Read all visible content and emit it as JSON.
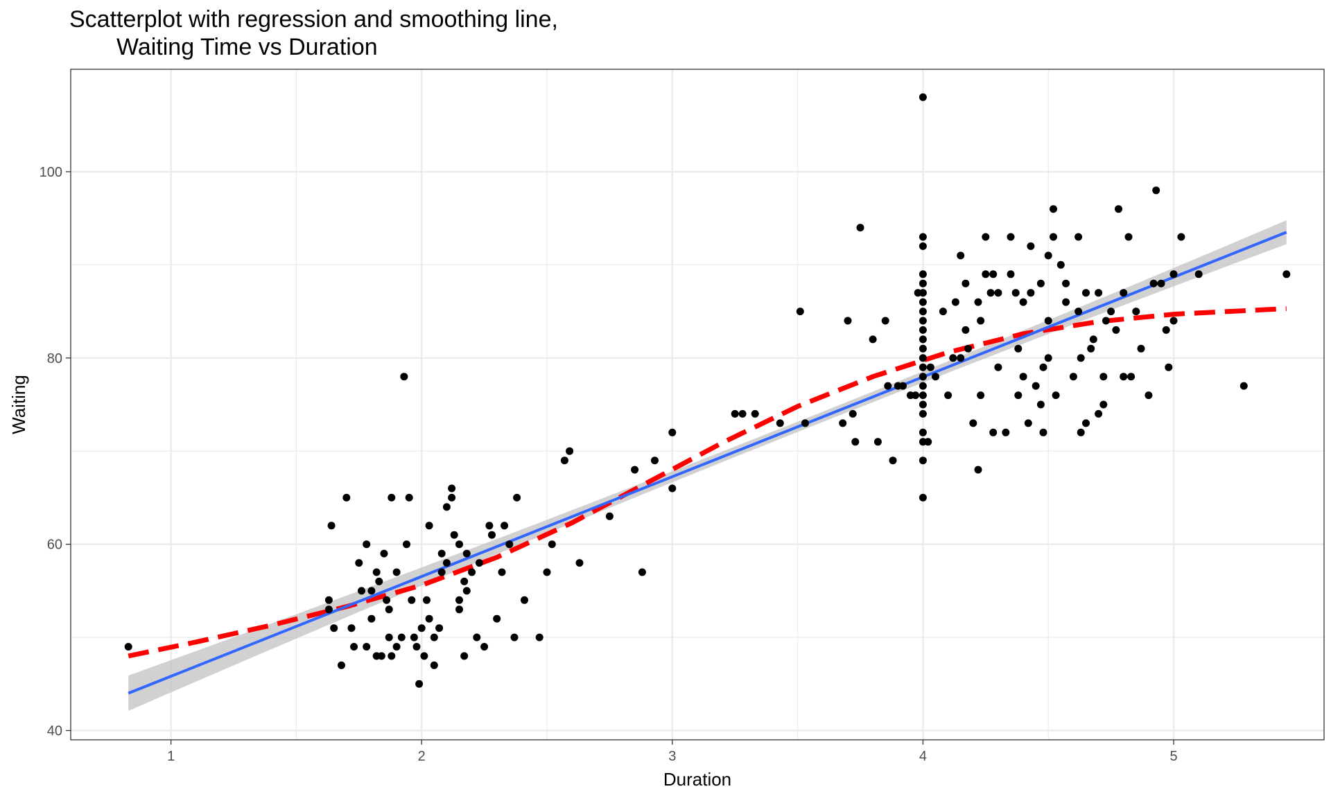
{
  "chart_data": {
    "type": "scatter",
    "title_line1": "Scatterplot with regression and smoothing line,",
    "title_line2": "Waiting Time vs Duration",
    "xlabel": "Duration",
    "ylabel": "Waiting",
    "xlim": [
      0.6,
      5.6
    ],
    "ylim": [
      39,
      111
    ],
    "x_ticks": [
      1,
      2,
      3,
      4,
      5
    ],
    "y_ticks": [
      40,
      60,
      80,
      100
    ],
    "grid": true,
    "legend": "none",
    "colors": {
      "points": "#000000",
      "regression": "#3366FF",
      "ribbon": "#BEBEBE",
      "smooth": "#FF0000",
      "grid": "#EBEBEB",
      "panel_border": "#333333"
    },
    "points": [
      [
        0.83,
        49
      ],
      [
        1.63,
        54
      ],
      [
        1.63,
        53
      ],
      [
        1.64,
        62
      ],
      [
        1.65,
        51
      ],
      [
        1.68,
        47
      ],
      [
        1.7,
        65
      ],
      [
        1.72,
        51
      ],
      [
        1.73,
        49
      ],
      [
        1.75,
        58
      ],
      [
        1.76,
        55
      ],
      [
        1.78,
        60
      ],
      [
        1.78,
        49
      ],
      [
        1.8,
        52
      ],
      [
        1.8,
        55
      ],
      [
        1.82,
        57
      ],
      [
        1.82,
        48
      ],
      [
        1.83,
        56
      ],
      [
        1.84,
        48
      ],
      [
        1.85,
        59
      ],
      [
        1.86,
        54
      ],
      [
        1.87,
        53
      ],
      [
        1.87,
        50
      ],
      [
        1.88,
        65
      ],
      [
        1.88,
        48
      ],
      [
        1.9,
        49
      ],
      [
        1.9,
        57
      ],
      [
        1.92,
        50
      ],
      [
        1.93,
        78
      ],
      [
        1.94,
        60
      ],
      [
        1.95,
        65
      ],
      [
        1.96,
        54
      ],
      [
        1.97,
        50
      ],
      [
        1.98,
        49
      ],
      [
        1.99,
        45
      ],
      [
        2.0,
        51
      ],
      [
        2.01,
        48
      ],
      [
        2.02,
        54
      ],
      [
        2.03,
        62
      ],
      [
        2.03,
        52
      ],
      [
        2.05,
        50
      ],
      [
        2.05,
        47
      ],
      [
        2.07,
        51
      ],
      [
        2.08,
        57
      ],
      [
        2.08,
        59
      ],
      [
        2.1,
        64
      ],
      [
        2.1,
        58
      ],
      [
        2.12,
        66
      ],
      [
        2.12,
        65
      ],
      [
        2.13,
        61
      ],
      [
        2.15,
        60
      ],
      [
        2.15,
        54
      ],
      [
        2.15,
        53
      ],
      [
        2.17,
        48
      ],
      [
        2.17,
        56
      ],
      [
        2.18,
        59
      ],
      [
        2.18,
        55
      ],
      [
        2.2,
        57
      ],
      [
        2.22,
        50
      ],
      [
        2.23,
        58
      ],
      [
        2.25,
        49
      ],
      [
        2.27,
        62
      ],
      [
        2.28,
        61
      ],
      [
        2.3,
        52
      ],
      [
        2.32,
        57
      ],
      [
        2.33,
        62
      ],
      [
        2.35,
        60
      ],
      [
        2.37,
        50
      ],
      [
        2.38,
        65
      ],
      [
        2.41,
        54
      ],
      [
        2.47,
        50
      ],
      [
        2.5,
        57
      ],
      [
        2.52,
        60
      ],
      [
        2.57,
        69
      ],
      [
        2.59,
        70
      ],
      [
        2.63,
        58
      ],
      [
        2.75,
        63
      ],
      [
        2.85,
        68
      ],
      [
        2.88,
        57
      ],
      [
        2.93,
        69
      ],
      [
        3.0,
        72
      ],
      [
        3.0,
        66
      ],
      [
        3.25,
        74
      ],
      [
        3.28,
        74
      ],
      [
        3.33,
        74
      ],
      [
        3.43,
        73
      ],
      [
        3.53,
        73
      ],
      [
        3.51,
        85
      ],
      [
        3.68,
        73
      ],
      [
        3.7,
        84
      ],
      [
        3.72,
        74
      ],
      [
        3.73,
        71
      ],
      [
        3.75,
        94
      ],
      [
        3.8,
        82
      ],
      [
        3.82,
        71
      ],
      [
        3.85,
        84
      ],
      [
        3.86,
        77
      ],
      [
        3.88,
        69
      ],
      [
        3.9,
        77
      ],
      [
        3.92,
        77
      ],
      [
        3.95,
        76
      ],
      [
        3.97,
        76
      ],
      [
        3.98,
        87
      ],
      [
        4.0,
        108
      ],
      [
        4.0,
        93
      ],
      [
        4.0,
        92
      ],
      [
        4.0,
        89
      ],
      [
        4.0,
        88
      ],
      [
        4.0,
        87
      ],
      [
        4.0,
        86
      ],
      [
        4.0,
        85
      ],
      [
        4.0,
        84
      ],
      [
        4.0,
        83
      ],
      [
        4.0,
        82
      ],
      [
        4.0,
        81
      ],
      [
        4.0,
        80
      ],
      [
        4.0,
        79
      ],
      [
        4.0,
        78
      ],
      [
        4.0,
        77
      ],
      [
        4.0,
        76
      ],
      [
        4.0,
        75
      ],
      [
        4.0,
        74
      ],
      [
        4.0,
        72
      ],
      [
        4.0,
        71
      ],
      [
        4.0,
        69
      ],
      [
        4.0,
        65
      ],
      [
        4.02,
        71
      ],
      [
        4.03,
        79
      ],
      [
        4.05,
        78
      ],
      [
        4.08,
        85
      ],
      [
        4.1,
        76
      ],
      [
        4.12,
        80
      ],
      [
        4.13,
        86
      ],
      [
        4.15,
        91
      ],
      [
        4.15,
        80
      ],
      [
        4.17,
        88
      ],
      [
        4.17,
        83
      ],
      [
        4.18,
        81
      ],
      [
        4.2,
        73
      ],
      [
        4.22,
        68
      ],
      [
        4.22,
        86
      ],
      [
        4.23,
        84
      ],
      [
        4.23,
        76
      ],
      [
        4.25,
        93
      ],
      [
        4.25,
        89
      ],
      [
        4.27,
        87
      ],
      [
        4.28,
        72
      ],
      [
        4.28,
        89
      ],
      [
        4.3,
        79
      ],
      [
        4.3,
        87
      ],
      [
        4.33,
        72
      ],
      [
        4.35,
        93
      ],
      [
        4.35,
        89
      ],
      [
        4.37,
        87
      ],
      [
        4.38,
        76
      ],
      [
        4.38,
        81
      ],
      [
        4.4,
        78
      ],
      [
        4.4,
        86
      ],
      [
        4.42,
        73
      ],
      [
        4.43,
        92
      ],
      [
        4.43,
        87
      ],
      [
        4.45,
        77
      ],
      [
        4.47,
        75
      ],
      [
        4.47,
        88
      ],
      [
        4.48,
        72
      ],
      [
        4.48,
        79
      ],
      [
        4.5,
        91
      ],
      [
        4.5,
        84
      ],
      [
        4.5,
        80
      ],
      [
        4.52,
        96
      ],
      [
        4.52,
        93
      ],
      [
        4.53,
        76
      ],
      [
        4.55,
        90
      ],
      [
        4.57,
        86
      ],
      [
        4.57,
        88
      ],
      [
        4.6,
        78
      ],
      [
        4.62,
        85
      ],
      [
        4.62,
        93
      ],
      [
        4.63,
        72
      ],
      [
        4.63,
        80
      ],
      [
        4.65,
        73
      ],
      [
        4.65,
        87
      ],
      [
        4.67,
        81
      ],
      [
        4.68,
        82
      ],
      [
        4.7,
        74
      ],
      [
        4.7,
        87
      ],
      [
        4.72,
        78
      ],
      [
        4.72,
        75
      ],
      [
        4.73,
        84
      ],
      [
        4.75,
        85
      ],
      [
        4.77,
        83
      ],
      [
        4.78,
        96
      ],
      [
        4.8,
        87
      ],
      [
        4.8,
        78
      ],
      [
        4.82,
        93
      ],
      [
        4.83,
        78
      ],
      [
        4.85,
        85
      ],
      [
        4.87,
        81
      ],
      [
        4.9,
        76
      ],
      [
        4.92,
        88
      ],
      [
        4.93,
        98
      ],
      [
        4.95,
        88
      ],
      [
        4.97,
        83
      ],
      [
        4.98,
        79
      ],
      [
        5.0,
        89
      ],
      [
        5.0,
        84
      ],
      [
        5.03,
        93
      ],
      [
        5.1,
        89
      ],
      [
        5.28,
        77
      ],
      [
        5.45,
        89
      ]
    ],
    "regression": {
      "x": [
        0.83,
        5.45
      ],
      "y": [
        44.0,
        93.5
      ],
      "ribbon_halfwidth_ends": 1.9,
      "ribbon_halfwidth_mid": 0.55,
      "x_center": 3.49
    },
    "smooth": {
      "x": [
        0.83,
        1.1,
        1.4,
        1.7,
        2.0,
        2.3,
        2.6,
        2.9,
        3.2,
        3.5,
        3.8,
        4.1,
        4.4,
        4.7,
        5.0,
        5.3,
        5.45
      ],
      "y": [
        48.0,
        49.5,
        51.3,
        53.3,
        55.6,
        58.6,
        62.3,
        66.6,
        70.9,
        74.8,
        78.0,
        80.6,
        82.6,
        83.9,
        84.7,
        85.1,
        85.3
      ]
    }
  }
}
